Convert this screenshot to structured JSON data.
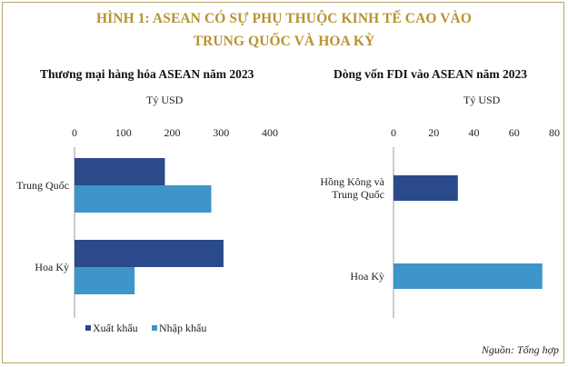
{
  "title_lines": [
    "HÌNH 1: ASEAN CÓ SỰ PHỤ THUỘC KINH TẾ CAO VÀO",
    "TRUNG QUỐC VÀ HOA KỲ"
  ],
  "source": "Nguồn: Tổng hợp",
  "colors": {
    "export": "#2a4a8c",
    "import": "#3d95c9",
    "title": "#b8922f"
  },
  "chart_data": [
    {
      "type": "bar",
      "orientation": "horizontal",
      "title": "Thương mại hàng hóa ASEAN năm 2023",
      "unit": "Tỷ USD",
      "xlim": [
        0,
        400
      ],
      "ticks": [
        0,
        100,
        200,
        300,
        400
      ],
      "categories": [
        "Trung Quốc",
        "Hoa Kỳ"
      ],
      "series": [
        {
          "name": "Xuất khẩu",
          "values": [
            185,
            305
          ]
        },
        {
          "name": "Nhập khẩu",
          "values": [
            280,
            123
          ]
        }
      ],
      "legend": "bottom-left"
    },
    {
      "type": "bar",
      "orientation": "horizontal",
      "title": "Dòng vốn FDI vào ASEAN năm 2023",
      "unit": "Tỷ USD",
      "xlim": [
        0,
        80
      ],
      "ticks": [
        0,
        20,
        40,
        60,
        80
      ],
      "categories": [
        "Hồng Kông và\nTrung Quốc",
        "Hoa Kỳ"
      ],
      "series": [
        {
          "name": "",
          "values": [
            32,
            74
          ]
        }
      ]
    }
  ]
}
